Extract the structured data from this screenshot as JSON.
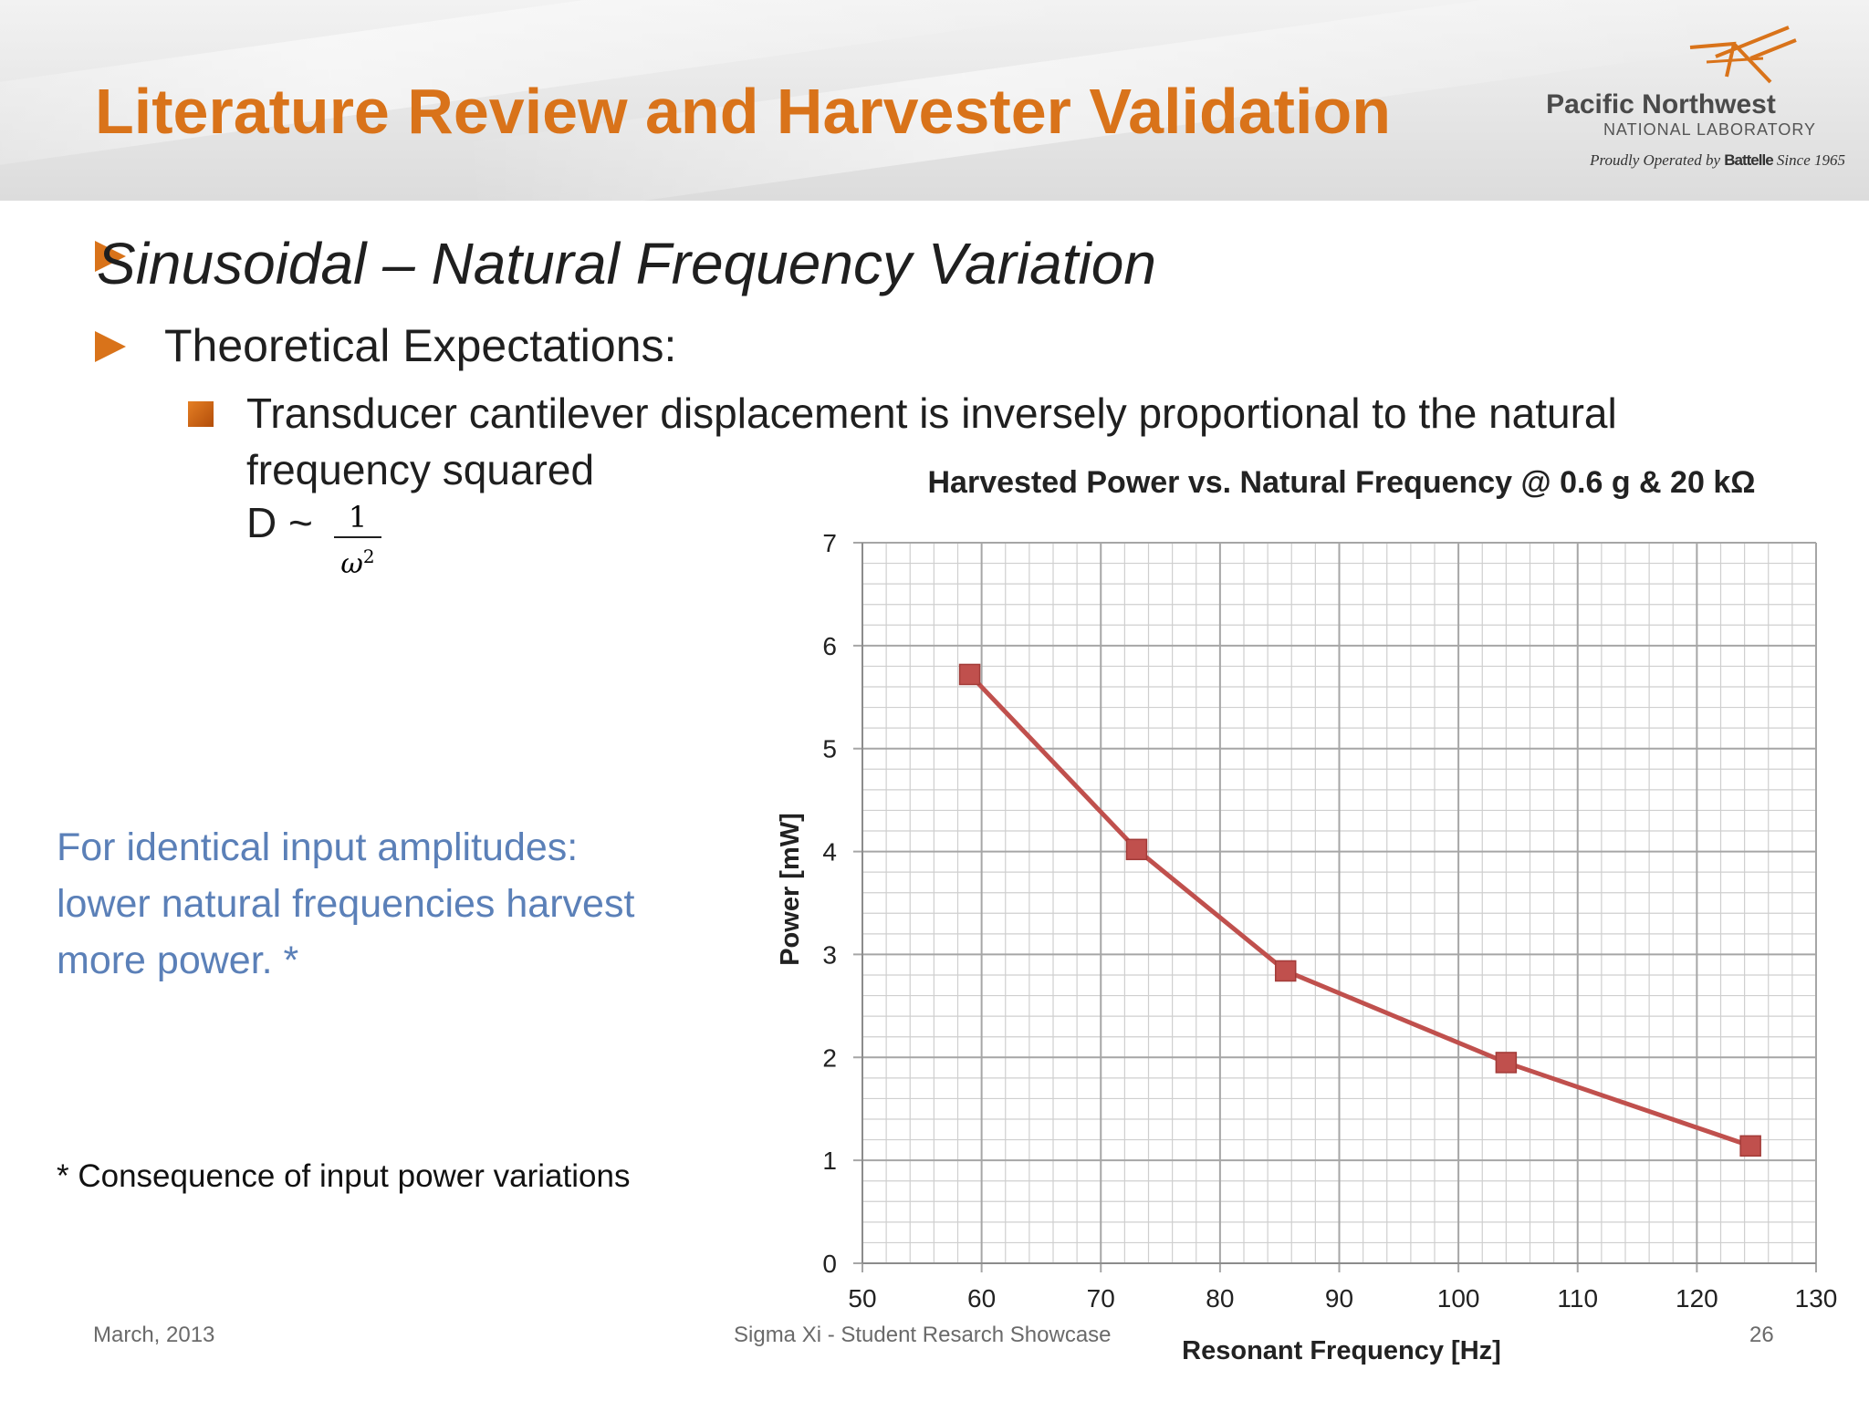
{
  "slide": {
    "title": "Literature Review and Harvester Validation",
    "heading": "Sinusoidal – Natural Frequency Variation",
    "subheading": "Theoretical Expectations:",
    "point_line1": "Transducer cantilever displacement is inversely proportional to the natural",
    "point_line2": "frequency squared",
    "formula_prefix": "D ~",
    "formula_numerator": "1",
    "formula_denominator": "ω",
    "formula_exponent": "2",
    "note_line1": "For identical input amplitudes:",
    "note_line2": "lower natural frequencies harvest",
    "note_line3": "more power. *",
    "footnote": "* Consequence of input power variations"
  },
  "logo": {
    "name": "Pacific Northwest",
    "sub": "NATIONAL LABORATORY",
    "tag_pre": "Proudly Operated by",
    "tag_brand": "Battelle",
    "tag_post": "Since 1965"
  },
  "footer": {
    "date": "March, 2013",
    "event": "Sigma Xi - Student Resarch Showcase",
    "page": "26"
  },
  "colors": {
    "title": "#d9731a",
    "note": "#5b80b8",
    "series": "#c0504d",
    "grid": "#a6a6a6"
  },
  "chart_data": {
    "type": "line",
    "title": "Harvested Power vs. Natural Frequency @ 0.6 g & 20 kΩ",
    "xlabel": "Resonant Frequency [Hz]",
    "ylabel": "Power [mW]",
    "xlim": [
      50,
      130
    ],
    "ylim": [
      0,
      7
    ],
    "xticks": [
      50,
      60,
      70,
      80,
      90,
      100,
      110,
      120,
      130
    ],
    "yticks": [
      0,
      1,
      2,
      3,
      4,
      5,
      6,
      7
    ],
    "grid": true,
    "legend": "none",
    "series": [
      {
        "marker": "square",
        "points": [
          {
            "x": 59,
            "y": 5.72
          },
          {
            "x": 73,
            "y": 4.02
          },
          {
            "x": 85.5,
            "y": 2.84
          },
          {
            "x": 104,
            "y": 1.95
          },
          {
            "x": 124.5,
            "y": 1.14
          }
        ]
      }
    ]
  }
}
